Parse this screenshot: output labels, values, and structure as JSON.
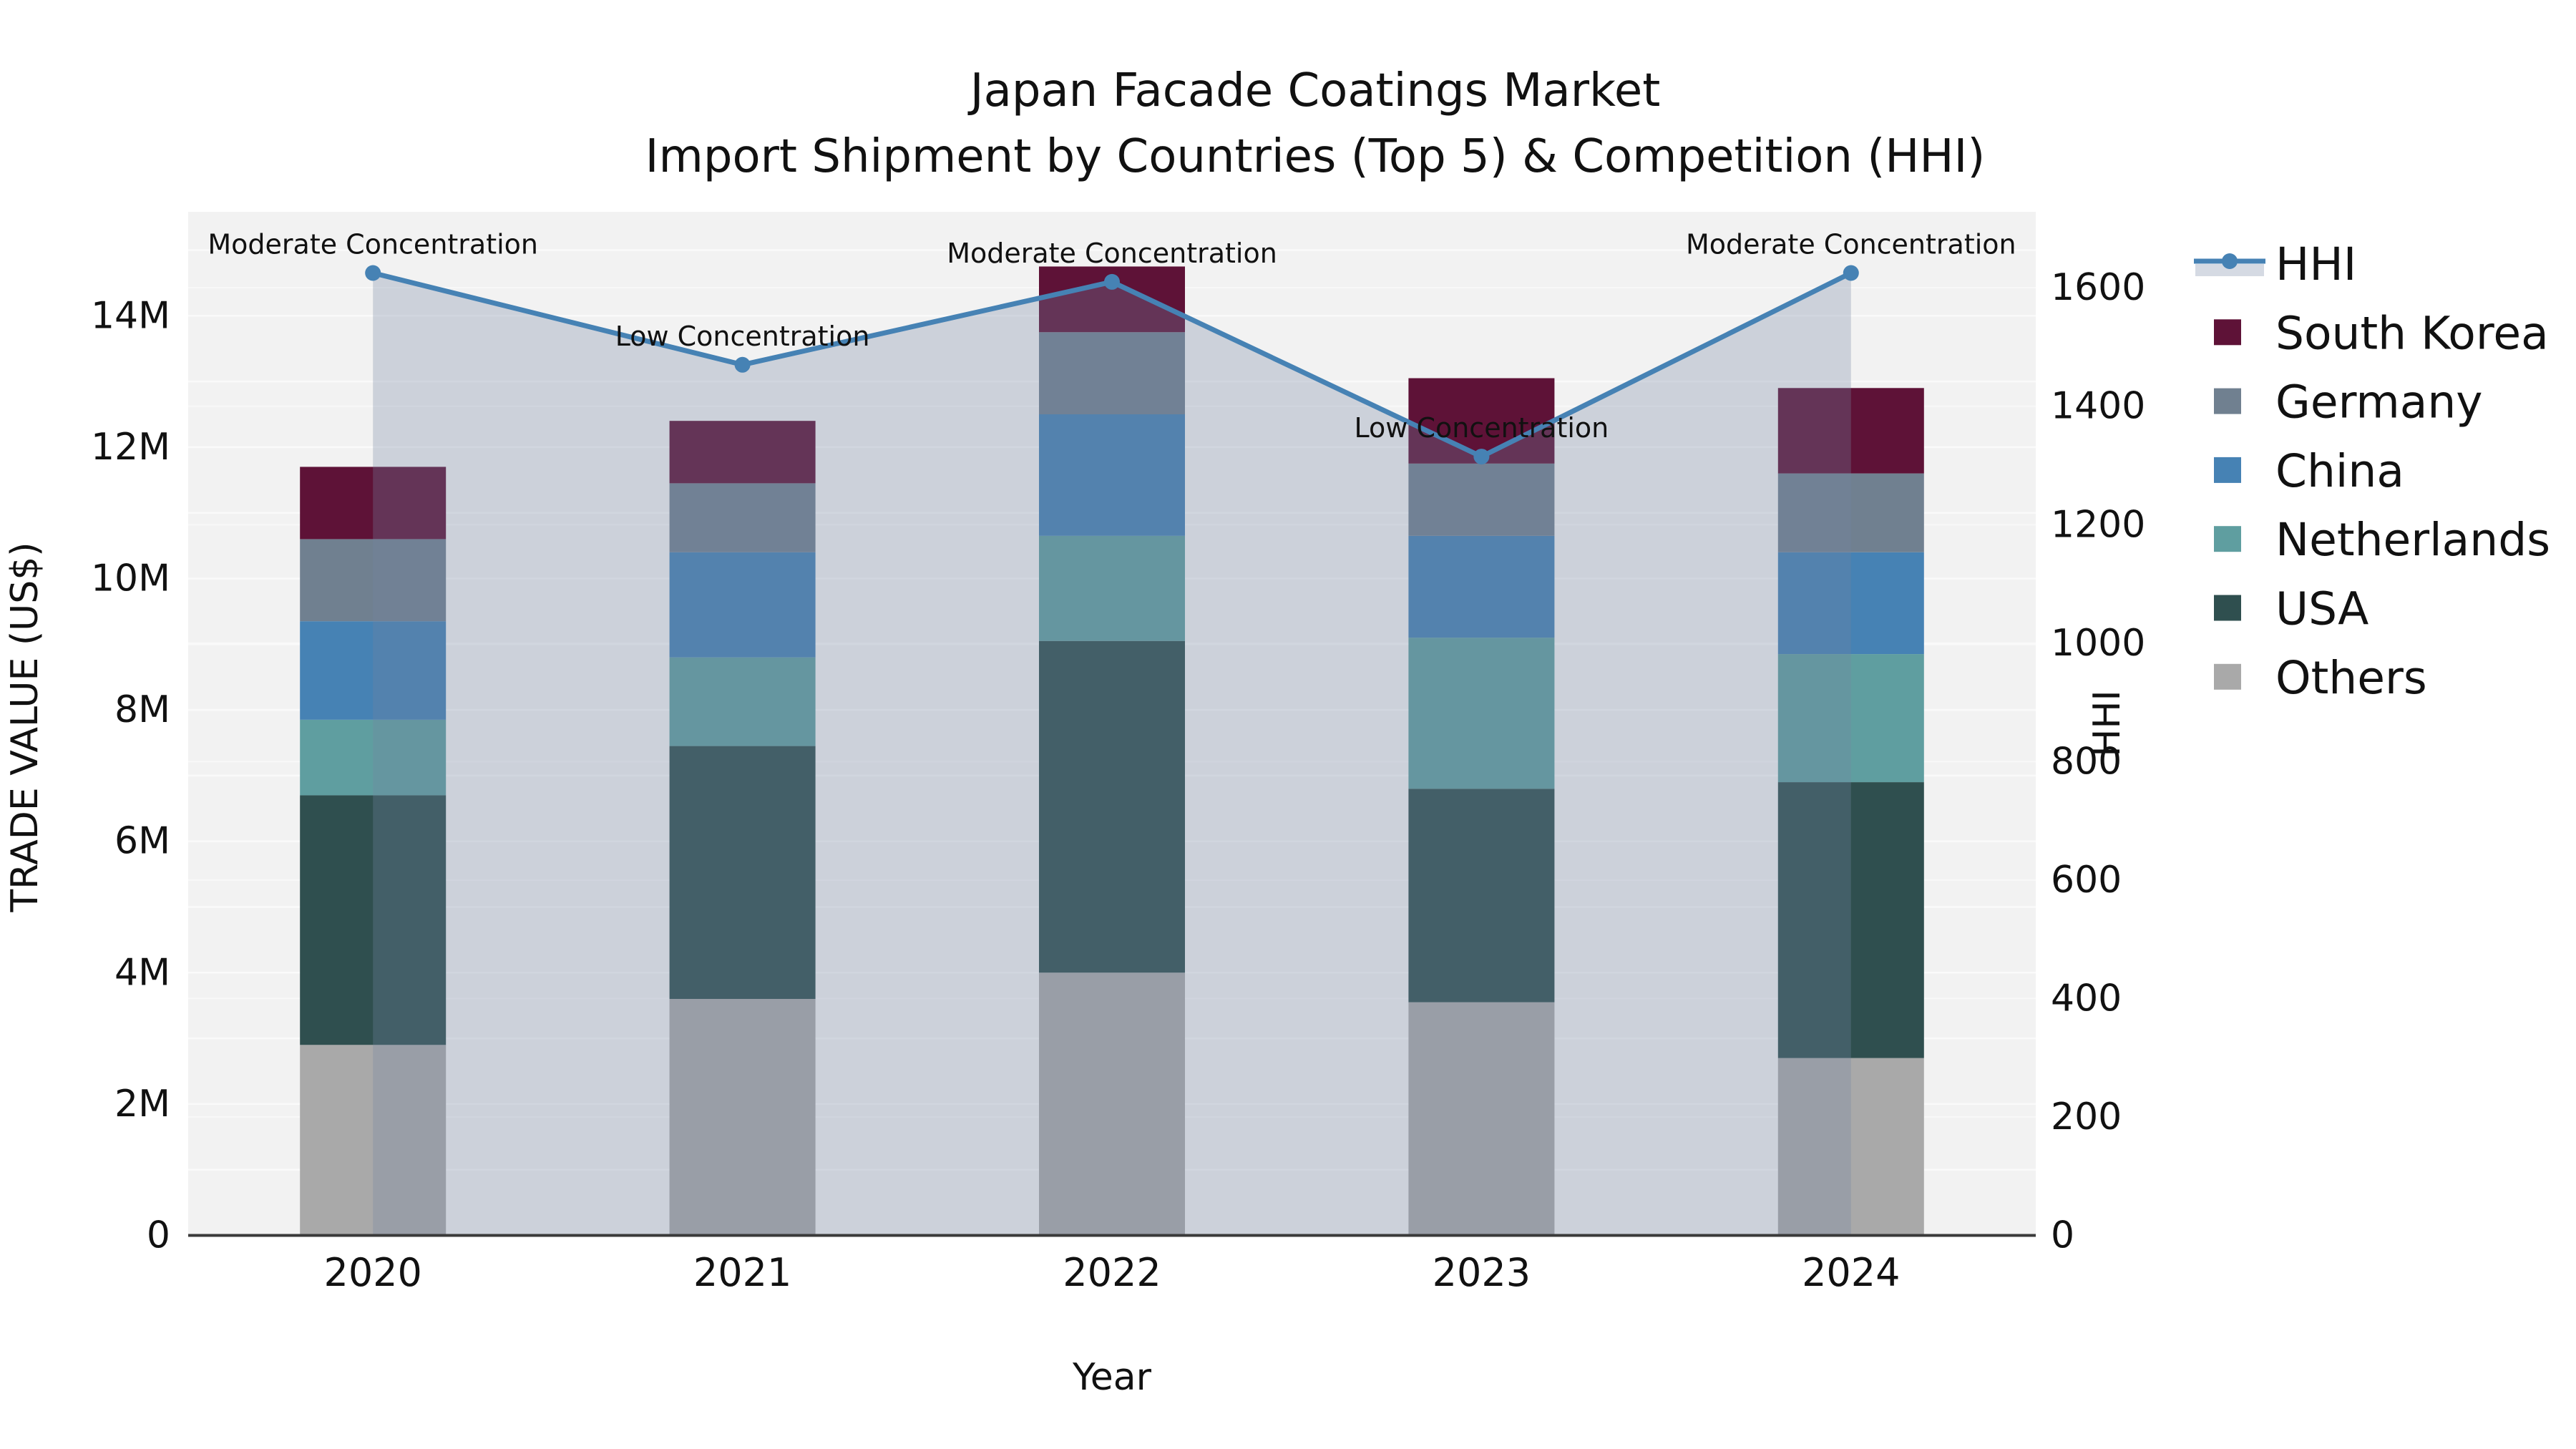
{
  "title": {
    "line1": "Japan Facade Coatings Market",
    "line2": "Import Shipment by Countries (Top 5) & Competition (HHI)"
  },
  "axes": {
    "x": {
      "title": "Year",
      "categories": [
        "2020",
        "2021",
        "2022",
        "2023",
        "2024"
      ]
    },
    "y_left": {
      "title": "TRADE VALUE (US$)",
      "tick_labels": [
        "0",
        "2M",
        "4M",
        "6M",
        "8M",
        "10M",
        "12M",
        "14M"
      ],
      "range_millions": [
        0,
        14
      ]
    },
    "y_right": {
      "title": "HHI",
      "tick_labels": [
        "0",
        "200",
        "400",
        "600",
        "800",
        "1000",
        "1200",
        "1400",
        "1600"
      ],
      "range": [
        0,
        1600
      ]
    }
  },
  "legend": {
    "items": [
      {
        "label": "HHI",
        "type": "line",
        "color": "#4682B4"
      },
      {
        "label": "South Korea",
        "type": "swatch",
        "color": "#5E1237"
      },
      {
        "label": "Germany",
        "type": "swatch",
        "color": "#708090"
      },
      {
        "label": "China",
        "type": "swatch",
        "color": "#4682B4"
      },
      {
        "label": "Netherlands",
        "type": "swatch",
        "color": "#5F9EA0"
      },
      {
        "label": "USA",
        "type": "swatch",
        "color": "#2F4F4F"
      },
      {
        "label": "Others",
        "type": "swatch",
        "color": "#A9A9A9"
      }
    ]
  },
  "chart_data": {
    "type": "bar",
    "stacked": true,
    "title": "Japan Facade Coatings Market — Import Shipment by Countries (Top 5) & Competition (HHI)",
    "xlabel": "Year",
    "ylabel_left": "TRADE VALUE (US$)",
    "ylabel_right": "HHI",
    "value_unit": "millions USD",
    "categories": [
      "2020",
      "2021",
      "2022",
      "2023",
      "2024"
    ],
    "series": [
      {
        "name": "Others",
        "color": "#A9A9A9",
        "values": [
          2.9,
          3.6,
          4.0,
          3.55,
          2.7
        ]
      },
      {
        "name": "USA",
        "color": "#2F4F4F",
        "values": [
          3.8,
          3.85,
          5.05,
          3.25,
          4.2
        ]
      },
      {
        "name": "Netherlands",
        "color": "#5F9EA0",
        "values": [
          1.15,
          1.35,
          1.6,
          2.3,
          1.95
        ]
      },
      {
        "name": "China",
        "color": "#4682B4",
        "values": [
          1.5,
          1.6,
          1.85,
          1.55,
          1.55
        ]
      },
      {
        "name": "Germany",
        "color": "#708090",
        "values": [
          1.25,
          1.05,
          1.25,
          1.1,
          1.2
        ]
      },
      {
        "name": "South Korea",
        "color": "#5E1237",
        "values": [
          1.1,
          0.95,
          1.0,
          1.3,
          1.3
        ]
      }
    ],
    "stack_totals_millions": [
      11.7,
      12.4,
      14.75,
      13.05,
      12.9
    ],
    "line": {
      "name": "HHI",
      "axis": "right",
      "color": "#4682B4",
      "fill_color": "#7384A2",
      "fill_opacity": 0.3,
      "values": [
        1625,
        1470,
        1610,
        1315,
        1625
      ]
    },
    "annotations": [
      {
        "category": "2020",
        "text": "Moderate Concentration"
      },
      {
        "category": "2021",
        "text": "Low Concentration"
      },
      {
        "category": "2022",
        "text": "Moderate Concentration"
      },
      {
        "category": "2023",
        "text": "Low Concentration"
      },
      {
        "category": "2024",
        "text": "Moderate Concentration"
      }
    ],
    "ylim_left_millions": [
      0,
      14
    ],
    "ylim_right": [
      0,
      1600
    ],
    "grid": true,
    "legend_position": "right"
  },
  "colors": {
    "plot_bg": "#F2F2F2",
    "grid_left": "#FAFAFA",
    "grid_right": "#F8F8F8",
    "spine": "#3A3A3A",
    "text": "#111111"
  }
}
